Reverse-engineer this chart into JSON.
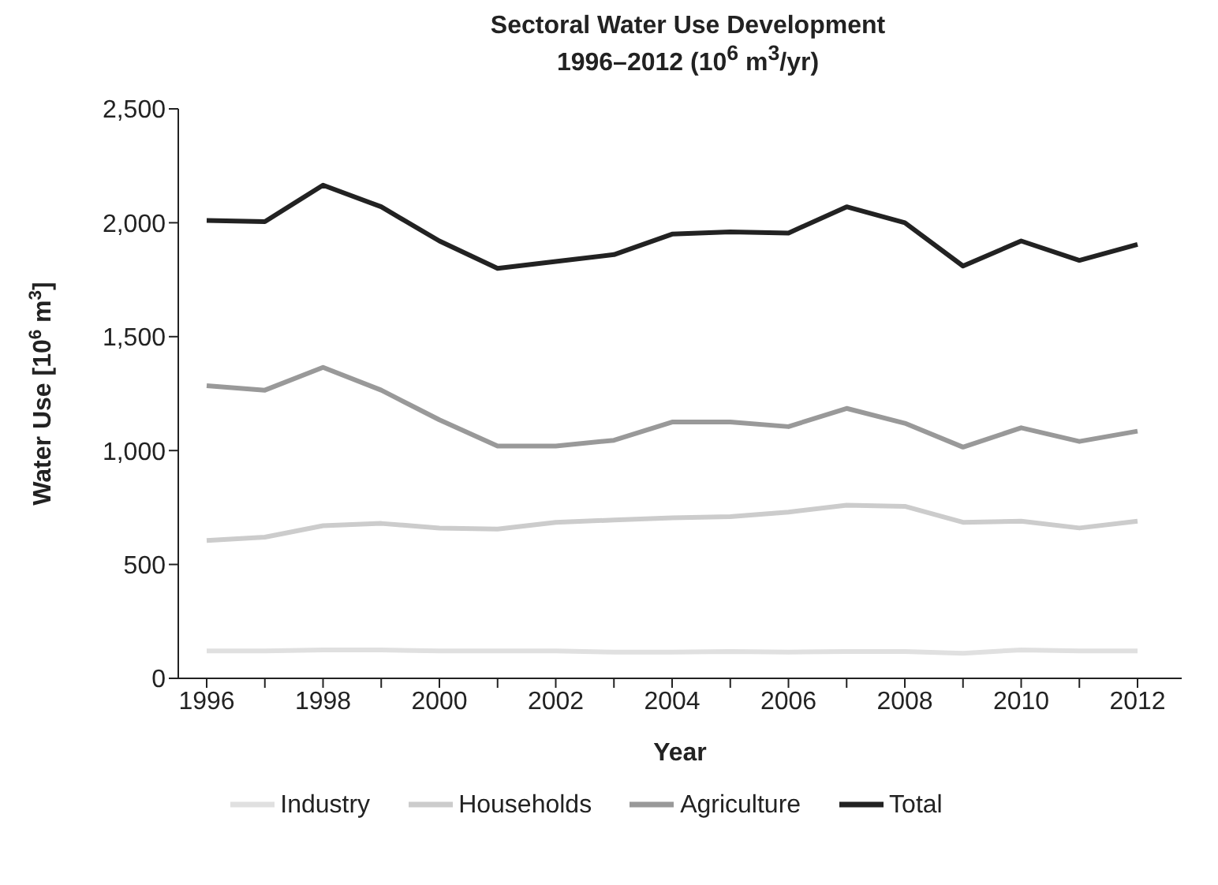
{
  "chart_data": {
    "type": "line",
    "title": "Sectoral Water Use Development",
    "subtitle": "1996–2012 (10$^{6}$ m$^{3}$/yr)",
    "xlabel": "Year",
    "ylabel": "Water Use  [10$^{6}$ m$^{3}$]",
    "categories": [
      "1996",
      null,
      "1998",
      null,
      "2000",
      null,
      "2002",
      null,
      "2004",
      null,
      "2006",
      null,
      "2008",
      null,
      "2010",
      null,
      "2012"
    ],
    "series": [
      {
        "name": "Industry",
        "color": "#e0e0e0",
        "values": [
          120,
          120,
          125,
          125,
          120,
          120,
          120,
          115,
          115,
          118,
          115,
          118,
          118,
          110,
          125,
          120,
          120
        ]
      },
      {
        "name": "Households",
        "color": "#cccccc",
        "values": [
          605,
          620,
          670,
          680,
          660,
          655,
          685,
          695,
          705,
          710,
          730,
          760,
          755,
          685,
          690,
          660,
          690
        ]
      },
      {
        "name": "Agriculture",
        "color": "#999999",
        "values": [
          1285,
          1265,
          1365,
          1265,
          1135,
          1020,
          1020,
          1045,
          1125,
          1125,
          1105,
          1185,
          1120,
          1015,
          1100,
          1040,
          1085
        ]
      },
      {
        "name": "Total",
        "color": "#222222",
        "values": [
          2010,
          2005,
          2165,
          2070,
          1920,
          1800,
          1830,
          1860,
          1950,
          1960,
          1955,
          2070,
          2000,
          1810,
          1920,
          1835,
          1905
        ]
      }
    ],
    "ylim": [
      0,
      2500
    ],
    "yticks": [
      0,
      500,
      {
        "value": 1000,
        "label": "1,000"
      },
      {
        "value": 1500,
        "label": "1,500"
      },
      {
        "value": 2000,
        "label": "2,000"
      },
      {
        "value": 2500,
        "label": "2,500"
      }
    ],
    "grid": false,
    "legend": "bottom",
    "marker": "none",
    "line_style": "solid"
  }
}
